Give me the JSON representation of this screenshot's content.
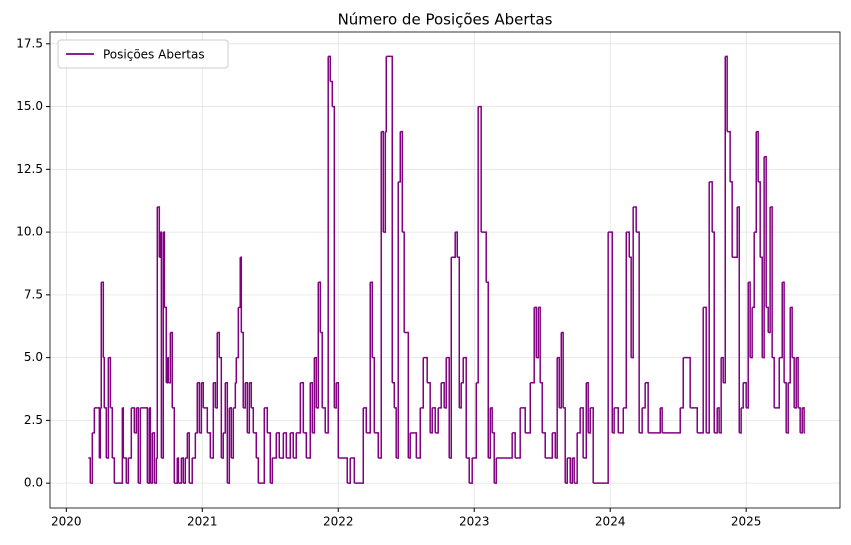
{
  "chart_data": {
    "type": "step",
    "title": "Número de Posições Abertas",
    "x": [
      2020.162,
      2020.176,
      2020.191,
      2020.206,
      2020.243,
      2020.25,
      2020.257,
      2020.272,
      2020.279,
      2020.294,
      2020.309,
      2020.324,
      2020.338,
      2020.353,
      2020.412,
      2020.419,
      2020.441,
      2020.456,
      2020.478,
      2020.5,
      2020.515,
      2020.529,
      2020.544,
      2020.596,
      2020.61,
      2020.618,
      2020.632,
      2020.647,
      2020.662,
      2020.669,
      2020.684,
      2020.691,
      2020.699,
      2020.713,
      2020.721,
      2020.735,
      2020.743,
      2020.75,
      2020.765,
      2020.779,
      2020.794,
      2020.816,
      2020.824,
      2020.846,
      2020.86,
      2020.875,
      2020.89,
      2020.904,
      2020.926,
      2020.949,
      2020.963,
      2020.978,
      2020.993,
      2021.007,
      2021.037,
      2021.059,
      2021.081,
      2021.096,
      2021.11,
      2021.125,
      2021.14,
      2021.154,
      2021.169,
      2021.184,
      2021.199,
      2021.213,
      2021.228,
      2021.243,
      2021.25,
      2021.265,
      2021.279,
      2021.287,
      2021.301,
      2021.316,
      2021.331,
      2021.346,
      2021.36,
      2021.375,
      2021.397,
      2021.412,
      2021.456,
      2021.478,
      2021.5,
      2021.515,
      2021.544,
      2021.566,
      2021.596,
      2021.618,
      2021.647,
      2021.669,
      2021.691,
      2021.721,
      2021.743,
      2021.765,
      2021.794,
      2021.809,
      2021.824,
      2021.838,
      2021.853,
      2021.868,
      2021.882,
      2021.904,
      2021.926,
      2021.941,
      2021.956,
      2021.971,
      2021.985,
      2022.0,
      2022.066,
      2022.088,
      2022.118,
      2022.184,
      2022.206,
      2022.235,
      2022.25,
      2022.265,
      2022.294,
      2022.316,
      2022.331,
      2022.346,
      2022.353,
      2022.382,
      2022.397,
      2022.412,
      2022.426,
      2022.441,
      2022.456,
      2022.471,
      2022.485,
      2022.515,
      2022.529,
      2022.559,
      2022.574,
      2022.603,
      2022.625,
      2022.654,
      2022.676,
      2022.691,
      2022.713,
      2022.735,
      2022.757,
      2022.779,
      2022.794,
      2022.816,
      2022.831,
      2022.86,
      2022.875,
      2022.89,
      2022.904,
      2022.919,
      2022.941,
      2022.963,
      2022.985,
      2023.015,
      2023.029,
      2023.051,
      2023.088,
      2023.103,
      2023.118,
      2023.132,
      2023.147,
      2023.162,
      2023.279,
      2023.301,
      2023.338,
      2023.375,
      2023.412,
      2023.441,
      2023.456,
      2023.471,
      2023.485,
      2023.5,
      2023.522,
      2023.574,
      2023.596,
      2023.61,
      2023.625,
      2023.64,
      2023.654,
      2023.669,
      2023.684,
      2023.706,
      2023.721,
      2023.735,
      2023.757,
      2023.779,
      2023.801,
      2023.824,
      2023.838,
      2023.853,
      2023.875,
      2023.985,
      2024.015,
      2024.029,
      2024.059,
      2024.096,
      2024.118,
      2024.14,
      2024.154,
      2024.169,
      2024.191,
      2024.213,
      2024.235,
      2024.257,
      2024.279,
      2024.368,
      2024.382,
      2024.515,
      2024.537,
      2024.588,
      2024.64,
      2024.684,
      2024.706,
      2024.728,
      2024.75,
      2024.765,
      2024.787,
      2024.801,
      2024.816,
      2024.831,
      2024.846,
      2024.86,
      2024.882,
      2024.897,
      2024.934,
      2024.949,
      2024.963,
      2024.978,
      2025.0,
      2025.015,
      2025.029,
      2025.044,
      2025.059,
      2025.074,
      2025.088,
      2025.103,
      2025.118,
      2025.132,
      2025.147,
      2025.162,
      2025.176,
      2025.191,
      2025.206,
      2025.243,
      2025.265,
      2025.279,
      2025.294,
      2025.309,
      2025.324,
      2025.338,
      2025.353,
      2025.368,
      2025.382,
      2025.397,
      2025.412,
      2025.426
    ],
    "series": [
      {
        "name": "Posições Abertas",
        "color": "#800080",
        "values": [
          1,
          0,
          2,
          3,
          1,
          3,
          8,
          5,
          3,
          1,
          5,
          3,
          1,
          0,
          3,
          1,
          0,
          1,
          3,
          2,
          3,
          0,
          3,
          0,
          3,
          0,
          2,
          0,
          1,
          11,
          9,
          10,
          1,
          10,
          7,
          4,
          5,
          4,
          6,
          3,
          0,
          1,
          0,
          1,
          0,
          1,
          2,
          0,
          1,
          2,
          4,
          2,
          4,
          3,
          2,
          1,
          4,
          3,
          6,
          5,
          1,
          2,
          4,
          0,
          3,
          1,
          3,
          4,
          5,
          7,
          9,
          6,
          3,
          4,
          2,
          4,
          3,
          2,
          1,
          0,
          3,
          2,
          0,
          1,
          2,
          1,
          2,
          1,
          2,
          1,
          2,
          4,
          2,
          1,
          4,
          2,
          5,
          3,
          8,
          6,
          3,
          2,
          17,
          16,
          15,
          3,
          4,
          1,
          0,
          1,
          0,
          3,
          2,
          8,
          5,
          2,
          1,
          14,
          10,
          14,
          17,
          17,
          4,
          3,
          1,
          12,
          14,
          10,
          6,
          1,
          2,
          2,
          1,
          3,
          5,
          4,
          2,
          3,
          2,
          3,
          4,
          3,
          5,
          1,
          9,
          10,
          9,
          3,
          4,
          5,
          1,
          0,
          1,
          4,
          15,
          10,
          8,
          1,
          3,
          2,
          0,
          1,
          2,
          1,
          3,
          2,
          4,
          7,
          5,
          7,
          4,
          2,
          1,
          2,
          1,
          5,
          3,
          6,
          3,
          0,
          1,
          0,
          1,
          0,
          2,
          3,
          1,
          4,
          2,
          3,
          0,
          10,
          2,
          3,
          2,
          3,
          10,
          9,
          5,
          11,
          10,
          2,
          3,
          4,
          2,
          3,
          2,
          3,
          5,
          3,
          2,
          7,
          2,
          12,
          10,
          2,
          3,
          2,
          5,
          4,
          17,
          14,
          12,
          9,
          11,
          2,
          3,
          4,
          3,
          8,
          5,
          7,
          10,
          14,
          12,
          9,
          5,
          13,
          7,
          6,
          11,
          5,
          3,
          5,
          8,
          4,
          2,
          4,
          7,
          5,
          3,
          5,
          3,
          2,
          3,
          2
        ]
      }
    ],
    "xlim": [
      2019.88,
      2025.69
    ],
    "xticks": [
      2020,
      2021,
      2022,
      2023,
      2024,
      2025
    ],
    "ylim": [
      -0.99,
      17.97
    ],
    "yticks": [
      {
        "value": 0,
        "label": "0.0"
      },
      2.5,
      {
        "value": 5,
        "label": "5.0"
      },
      7.5,
      {
        "value": 10,
        "label": "10.0"
      },
      12.5,
      {
        "value": 15,
        "label": "15.0"
      },
      17.5
    ],
    "grid": true,
    "legend": "upper left"
  }
}
